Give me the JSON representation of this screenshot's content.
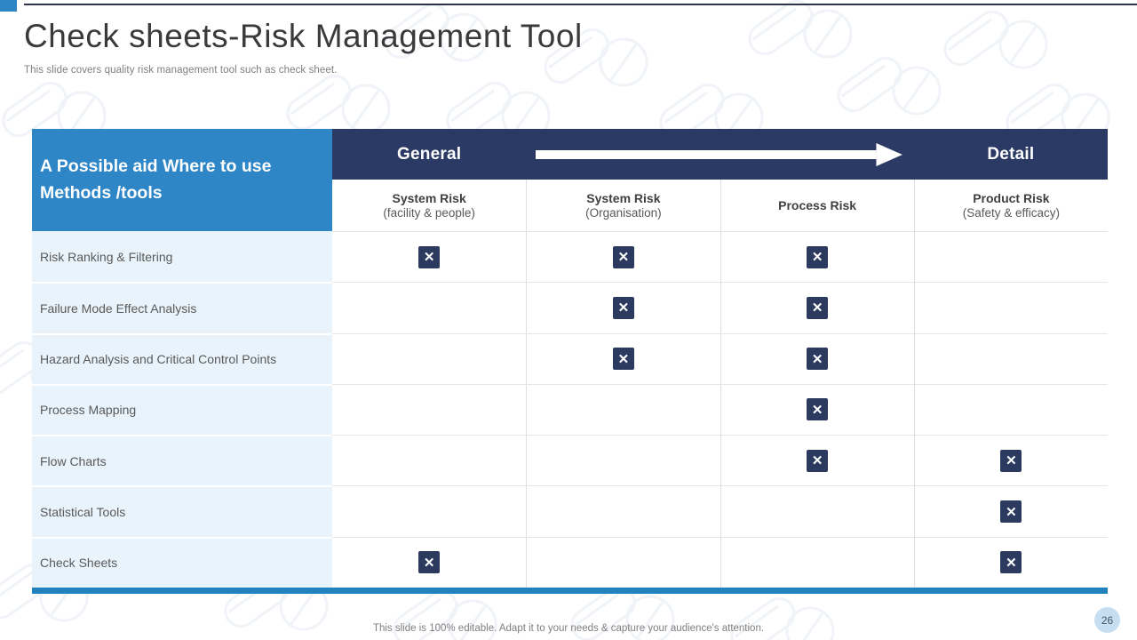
{
  "slide": {
    "title": "Check sheets-Risk Management Tool",
    "subtitle": "This slide covers quality risk management tool such as check sheet.",
    "footer": "This slide is 100% editable. Adapt it to your needs & capture your audience's attention.",
    "page_number": "26"
  },
  "table": {
    "corner_header": "A Possible aid Where to use  Methods /tools",
    "scale": {
      "left_label": "General",
      "right_label": "Detail"
    },
    "columns": [
      {
        "title": "System Risk",
        "subtitle": "(facility & people)"
      },
      {
        "title": "System Risk",
        "subtitle": "(Organisation)"
      },
      {
        "title": "Process Risk",
        "subtitle": ""
      },
      {
        "title": "Product Risk",
        "subtitle": "(Safety & efficacy)"
      }
    ],
    "rows": [
      {
        "label": "Risk Ranking & Filtering",
        "marks": [
          true,
          true,
          true,
          false
        ]
      },
      {
        "label": "Failure Mode Effect Analysis",
        "marks": [
          false,
          true,
          true,
          false
        ]
      },
      {
        "label": "Hazard Analysis and Critical Control Points",
        "marks": [
          false,
          true,
          true,
          false
        ]
      },
      {
        "label": "Process Mapping",
        "marks": [
          false,
          false,
          true,
          false
        ]
      },
      {
        "label": "Flow Charts",
        "marks": [
          false,
          false,
          true,
          true
        ]
      },
      {
        "label": "Statistical Tools",
        "marks": [
          false,
          false,
          false,
          true
        ]
      },
      {
        "label": "Check Sheets",
        "marks": [
          true,
          false,
          false,
          true
        ]
      }
    ],
    "mark_glyph": "✕"
  },
  "colors": {
    "accent_blue": "#2E86C6",
    "header_navy": "#2B3A64",
    "mark_navy": "#2B3A5E",
    "row_label_bg": "#E9F3FB",
    "bottom_bar_blue": "#2182BE",
    "muted_text": "#7F7F7F",
    "title_text": "#3A3A3A"
  }
}
